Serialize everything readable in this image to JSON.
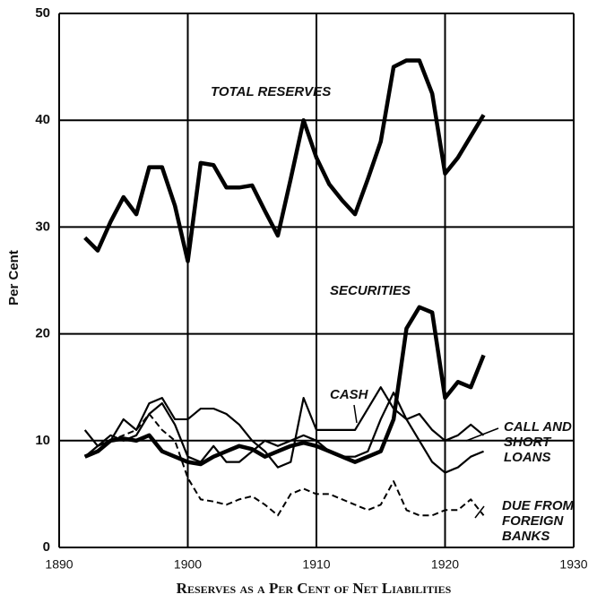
{
  "chart_data": {
    "type": "line",
    "xlabel": "Reserves as a Per Cent of Net Liabilities",
    "ylabel": "Per Cent",
    "x": [
      1892,
      1893,
      1894,
      1895,
      1896,
      1897,
      1898,
      1899,
      1900,
      1901,
      1902,
      1903,
      1904,
      1905,
      1906,
      1907,
      1908,
      1909,
      1910,
      1911,
      1912,
      1913,
      1914,
      1915,
      1916,
      1917,
      1918,
      1919,
      1920,
      1921,
      1922,
      1923
    ],
    "series": [
      {
        "name": "TOTAL RESERVES",
        "color": "#000000",
        "style": "thick",
        "values": [
          29,
          27.8,
          30.5,
          32.8,
          31.2,
          35.6,
          35.6,
          32,
          26.8,
          36,
          35.8,
          33.7,
          33.7,
          33.9,
          31.5,
          29.2,
          34.5,
          40,
          36.5,
          34,
          32.5,
          31.2,
          34.5,
          38,
          45,
          45.6,
          45.6,
          42.5,
          35,
          36.5,
          38.5,
          40.5
        ]
      },
      {
        "name": "SECURITIES",
        "color": "#000000",
        "style": "thick",
        "values": [
          8.5,
          9,
          10,
          10.2,
          10,
          10.5,
          9,
          8.5,
          8,
          7.8,
          8.5,
          9,
          9.5,
          9.2,
          8.5,
          9,
          9.5,
          9.8,
          9.5,
          9,
          8.5,
          8,
          8.5,
          9,
          12,
          20.5,
          22.5,
          22,
          14,
          15.5,
          15,
          18
        ]
      },
      {
        "name": "CASH",
        "color": "#000000",
        "style": "thin",
        "values": [
          11,
          9.5,
          10,
          12,
          11,
          13.5,
          14,
          12,
          12,
          13,
          13,
          12.5,
          11.5,
          10,
          9,
          7.5,
          8,
          14,
          11,
          11,
          11,
          11,
          13,
          15,
          13,
          12,
          12.5,
          11,
          10,
          10.5,
          11.5,
          10.5
        ]
      },
      {
        "name": "CALL AND SHORT LOANS",
        "color": "#000000",
        "style": "thin",
        "values": [
          8.5,
          9.5,
          10.5,
          10,
          10.5,
          12.5,
          13.5,
          11.5,
          8.5,
          8,
          9.5,
          8,
          8,
          9,
          10,
          9.5,
          10,
          10.5,
          10,
          9,
          8.5,
          8.5,
          9,
          12,
          14.5,
          12,
          10,
          8,
          7,
          7.5,
          8.5,
          9
        ]
      },
      {
        "name": "DUE FROM FOREIGN BANKS",
        "color": "#000000",
        "style": "dashed",
        "values": [
          8.5,
          9,
          10,
          10.5,
          11,
          12.5,
          11,
          10,
          6.5,
          4.5,
          4.3,
          4,
          4.5,
          4.8,
          4,
          3,
          5,
          5.5,
          5,
          5,
          4.5,
          4,
          3.5,
          4,
          6.2,
          3.5,
          3,
          3,
          3.5,
          3.5,
          4.5,
          3
        ]
      }
    ],
    "xlim": [
      1890,
      1930
    ],
    "xticks": [
      1890,
      1900,
      1910,
      1920,
      1930
    ],
    "ylim": [
      0,
      50
    ],
    "yticks": [
      0,
      10,
      20,
      30,
      40,
      50
    ],
    "grid": true
  }
}
